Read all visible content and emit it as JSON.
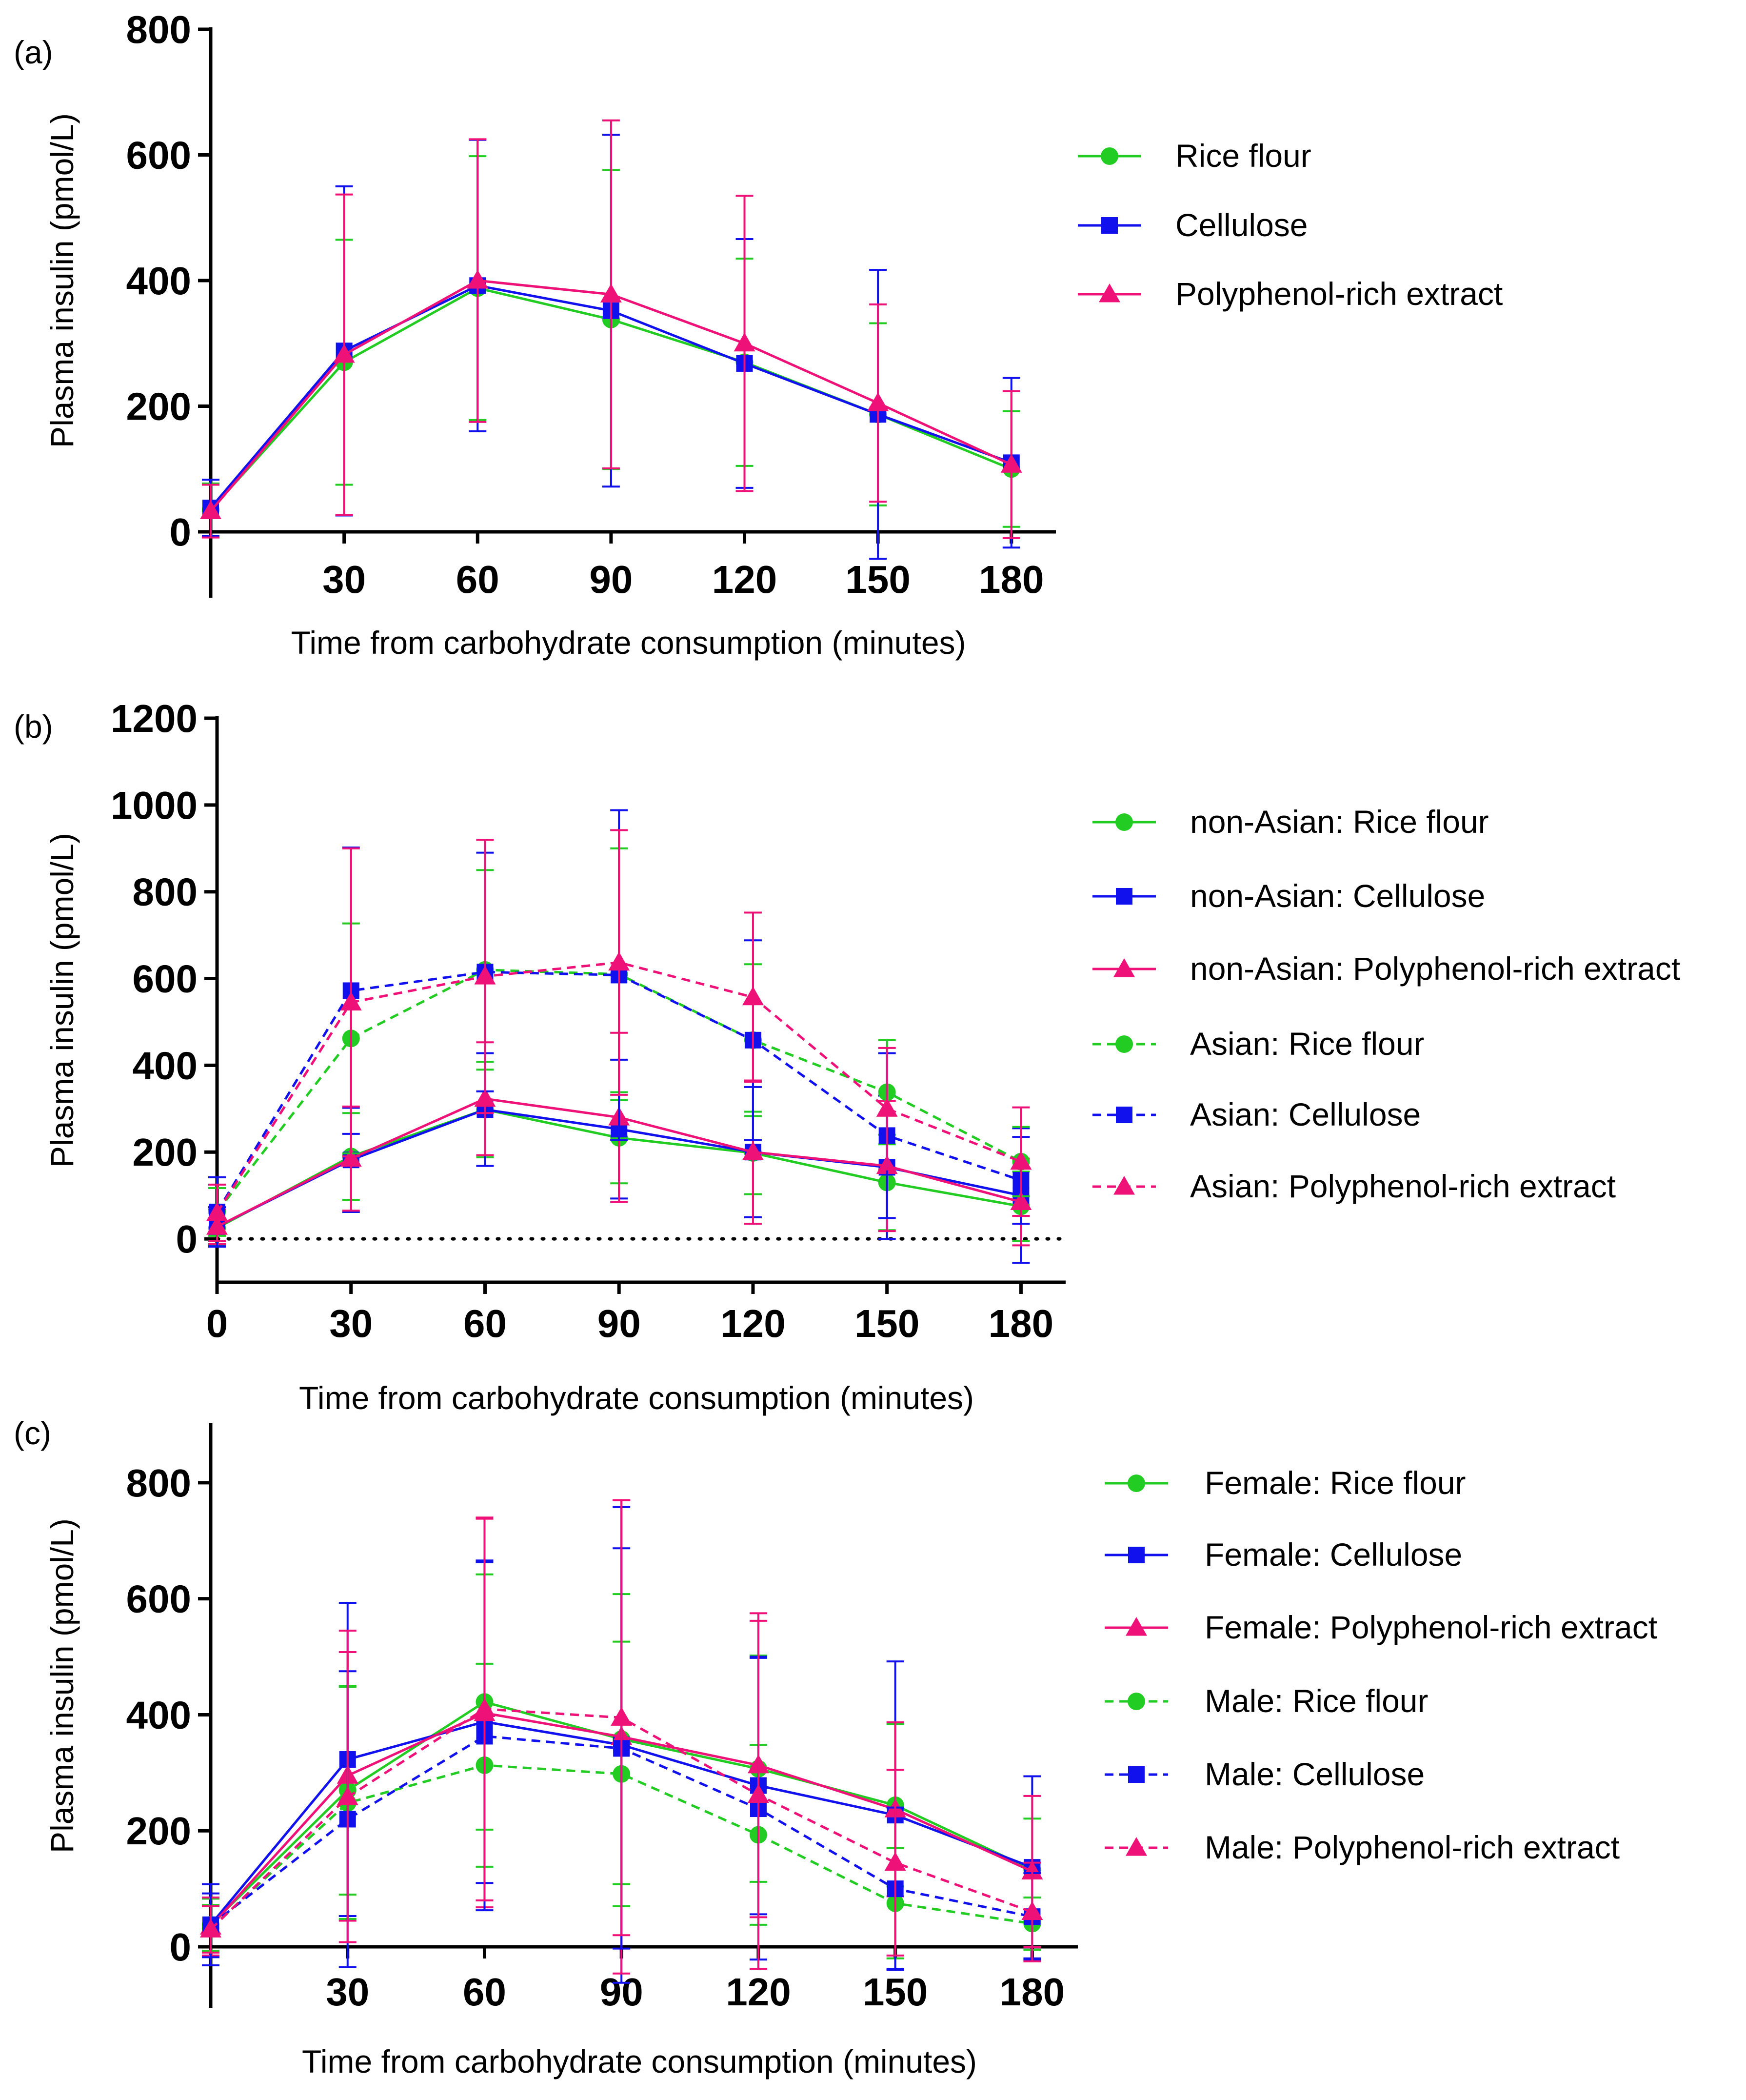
{
  "colors": {
    "rice_flour": "#22cc22",
    "cellulose": "#1111ee",
    "polyphenol": "#ee1177"
  },
  "chart_data": [
    {
      "panel": "(a)",
      "type": "line",
      "xlabel": "Time from carbohydrate consumption (minutes)",
      "ylabel": "Plasma insulin (pmol/L)",
      "ylim": [
        0,
        800
      ],
      "xlim": [
        0,
        190
      ],
      "yticks": [
        0,
        200,
        400,
        600,
        800
      ],
      "xticks": [
        30,
        60,
        90,
        120,
        150,
        180
      ],
      "legend_position": "right",
      "x": [
        0,
        30,
        60,
        90,
        120,
        150,
        180
      ],
      "series": [
        {
          "name": "Rice flour",
          "color": "rice_flour",
          "marker": "circle",
          "dash": false,
          "values": [
            35,
            270,
            388,
            338,
            270,
            187,
            100
          ],
          "err": [
            42,
            195,
            210,
            238,
            165,
            145,
            92
          ]
        },
        {
          "name": "Cellulose",
          "color": "cellulose",
          "marker": "square",
          "dash": false,
          "values": [
            38,
            288,
            392,
            352,
            268,
            187,
            110
          ],
          "err": [
            45,
            262,
            232,
            280,
            198,
            230,
            135
          ]
        },
        {
          "name": "Polyphenol-rich extract",
          "color": "polyphenol",
          "marker": "triangle",
          "dash": false,
          "values": [
            33,
            282,
            400,
            378,
            300,
            205,
            107
          ],
          "err": [
            42,
            255,
            225,
            277,
            235,
            157,
            117
          ]
        }
      ]
    },
    {
      "panel": "(b)",
      "type": "line",
      "xlabel": "Time from carbohydrate consumption (minutes)",
      "ylabel": "Plasma insulin (pmol/L)",
      "ylim": [
        -100,
        1200
      ],
      "xlim": [
        0,
        190
      ],
      "yticks": [
        0,
        200,
        400,
        600,
        800,
        1000,
        1200
      ],
      "xticks": [
        0,
        30,
        60,
        90,
        120,
        150,
        180
      ],
      "zero_line": true,
      "legend_position": "right",
      "x": [
        0,
        30,
        60,
        90,
        120,
        150,
        180
      ],
      "series": [
        {
          "name": "non-Asian: Rice flour",
          "color": "rice_flour",
          "marker": "circle",
          "dash": false,
          "values": [
            25,
            190,
            298,
            233,
            198,
            130,
            75
          ],
          "err": [
            40,
            100,
            110,
            105,
            95,
            110,
            80
          ]
        },
        {
          "name": "non-Asian: Cellulose",
          "color": "cellulose",
          "marker": "square",
          "dash": false,
          "values": [
            28,
            182,
            298,
            253,
            200,
            165,
            100
          ],
          "err": [
            45,
            120,
            130,
            160,
            150,
            165,
            155
          ]
        },
        {
          "name": "non-Asian: Polyphenol-rich extract",
          "color": "polyphenol",
          "marker": "triangle",
          "dash": false,
          "values": [
            28,
            185,
            323,
            280,
            200,
            168,
            85
          ],
          "err": [
            40,
            120,
            130,
            195,
            165,
            150,
            100
          ]
        },
        {
          "name": "Asian: Rice flour",
          "color": "rice_flour",
          "marker": "circle",
          "dash": true,
          "values": [
            62,
            462,
            620,
            610,
            458,
            338,
            178
          ],
          "err": [
            55,
            265,
            230,
            290,
            175,
            120,
            80
          ]
        },
        {
          "name": "Asian: Cellulose",
          "color": "cellulose",
          "marker": "square",
          "dash": true,
          "values": [
            62,
            572,
            615,
            608,
            458,
            238,
            135
          ],
          "err": [
            80,
            330,
            275,
            380,
            230,
            190,
            100
          ]
        },
        {
          "name": "Asian: Polyphenol-rich extract",
          "color": "polyphenol",
          "marker": "triangle",
          "dash": true,
          "values": [
            60,
            545,
            605,
            637,
            557,
            300,
            178
          ],
          "err": [
            65,
            355,
            315,
            305,
            195,
            140,
            125
          ]
        }
      ]
    },
    {
      "panel": "(c)",
      "type": "line",
      "xlabel": "Time from carbohydrate consumption (minutes)",
      "ylabel": "Plasma insulin (pmol/L)",
      "ylim": [
        0,
        900
      ],
      "xlim": [
        0,
        190
      ],
      "yticks": [
        0,
        200,
        400,
        600,
        800
      ],
      "xticks": [
        30,
        60,
        90,
        120,
        150,
        180
      ],
      "legend_position": "right",
      "x": [
        0,
        30,
        60,
        90,
        120,
        150,
        180
      ],
      "series": [
        {
          "name": "Female: Rice flour",
          "color": "rice_flour",
          "marker": "circle",
          "dash": false,
          "values": [
            38,
            270,
            422,
            358,
            307,
            244,
            133
          ],
          "err": [
            45,
            180,
            220,
            250,
            195,
            140,
            88
          ]
        },
        {
          "name": "Female: Cellulose",
          "color": "cellulose",
          "marker": "square",
          "dash": false,
          "values": [
            38,
            323,
            388,
            348,
            278,
            227,
            137
          ],
          "err": [
            70,
            270,
            278,
            410,
            222,
            265,
            157
          ]
        },
        {
          "name": "Female: Polyphenol-rich extract",
          "color": "polyphenol",
          "marker": "triangle",
          "dash": false,
          "values": [
            35,
            295,
            403,
            362,
            313,
            237,
            130
          ],
          "err": [
            50,
            250,
            335,
            408,
            262,
            150,
            130
          ]
        },
        {
          "name": "Male: Rice flour",
          "color": "rice_flour",
          "marker": "circle",
          "dash": true,
          "values": [
            32,
            248,
            313,
            298,
            193,
            75,
            40
          ],
          "err": [
            40,
            200,
            175,
            228,
            155,
            95,
            45
          ]
        },
        {
          "name": "Male: Cellulose",
          "color": "cellulose",
          "marker": "square",
          "dash": true,
          "values": [
            37,
            220,
            363,
            342,
            238,
            100,
            52
          ],
          "err": [
            55,
            255,
            300,
            345,
            260,
            140,
            75
          ]
        },
        {
          "name": "Male: Polyphenol-rich extract",
          "color": "polyphenol",
          "marker": "triangle",
          "dash": true,
          "values": [
            30,
            258,
            410,
            395,
            262,
            145,
            60
          ],
          "err": [
            40,
            250,
            330,
            375,
            300,
            160,
            85
          ]
        }
      ]
    }
  ]
}
